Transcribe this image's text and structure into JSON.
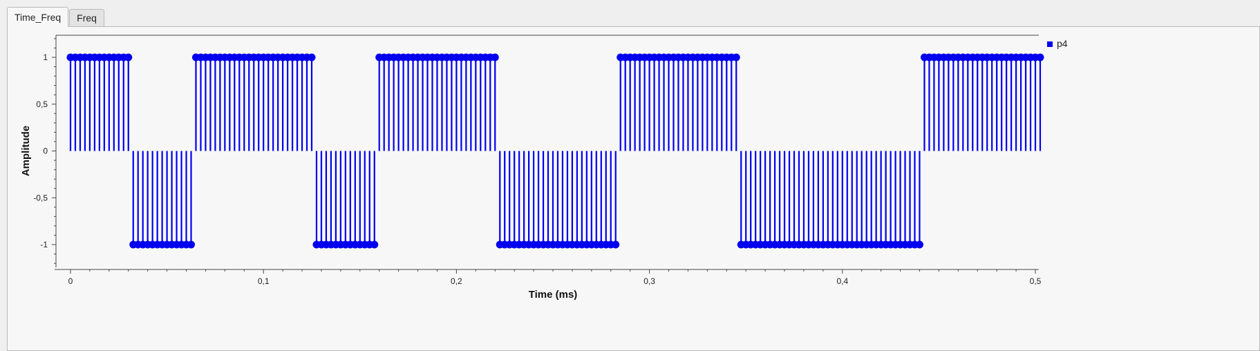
{
  "tabs": [
    {
      "label": "Time_Freq",
      "active": true
    },
    {
      "label": "Freq",
      "active": false
    }
  ],
  "chart_data": {
    "type": "stem",
    "xlabel": "Time (ms)",
    "ylabel": "Amplitude",
    "xlim": [
      0,
      0.5
    ],
    "ylim": [
      -1.25,
      1.25
    ],
    "xticks": [
      0,
      0.1,
      0.2,
      0.3,
      0.4,
      0.5
    ],
    "xtick_labels": [
      "0",
      "0,1",
      "0,2",
      "0,3",
      "0,4",
      "0,5"
    ],
    "yticks": [
      1,
      0.5,
      0,
      -0.5,
      -1
    ],
    "ytick_labels": [
      "1",
      "0,5",
      "0",
      "-0,5",
      "-1"
    ],
    "grid": false,
    "legend": "top-right",
    "sample_spacing_ms": 0.0025,
    "series": [
      {
        "name": "p4",
        "color": "#0000ee",
        "segments": [
          {
            "value": 1,
            "samples": 13
          },
          {
            "value": -1,
            "samples": 13
          },
          {
            "value": 1,
            "samples": 25
          },
          {
            "value": -1,
            "samples": 13
          },
          {
            "value": 1,
            "samples": 25
          },
          {
            "value": -1,
            "samples": 25
          },
          {
            "value": 1,
            "samples": 25
          },
          {
            "value": -1,
            "samples": 38
          },
          {
            "value": 1,
            "samples": 25
          }
        ]
      }
    ]
  }
}
